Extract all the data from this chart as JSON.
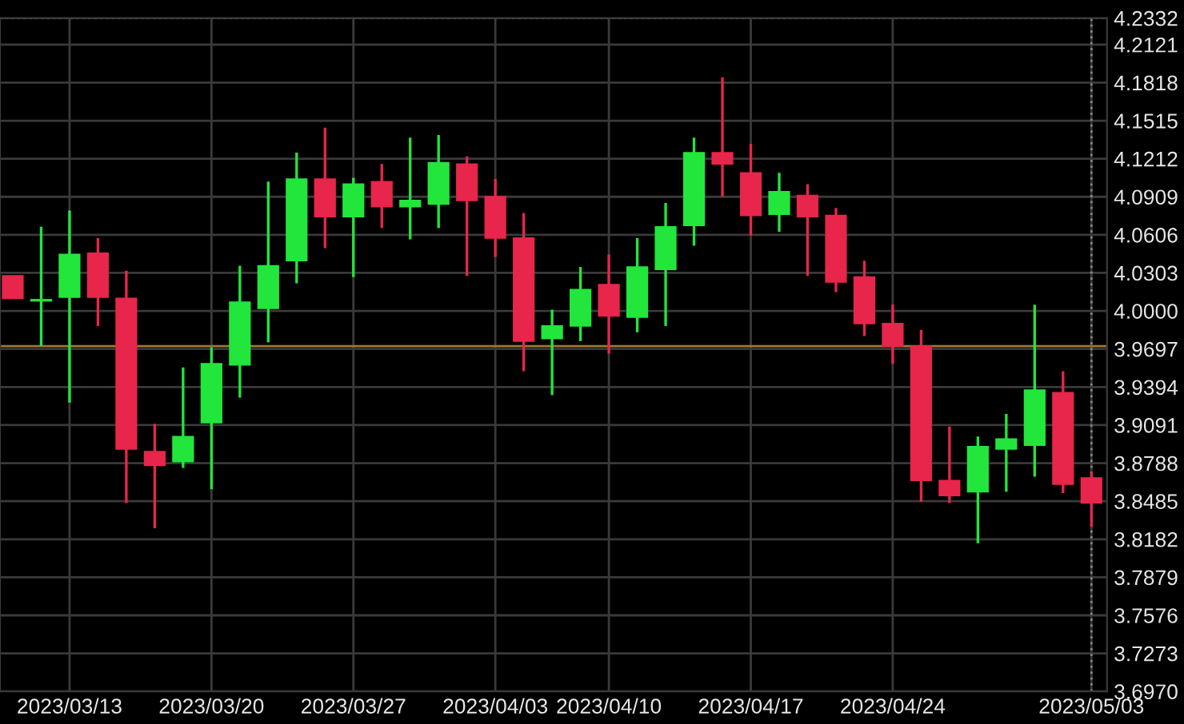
{
  "chart_data": {
    "type": "candlestick",
    "categories": [
      null,
      null,
      "2023/03/13",
      null,
      null,
      null,
      null,
      "2023/03/20",
      null,
      null,
      null,
      null,
      "2023/03/27",
      null,
      null,
      null,
      null,
      "2023/04/03",
      null,
      null,
      null,
      "2023/04/10",
      null,
      null,
      null,
      null,
      "2023/04/17",
      null,
      null,
      null,
      null,
      "2023/04/24",
      null,
      null,
      null,
      null,
      null,
      null,
      "2023/05/03"
    ],
    "ohlc": [
      [
        4.028,
        4.028,
        4.01,
        4.01
      ],
      [
        4.008,
        4.067,
        3.972,
        4.009
      ],
      [
        4.011,
        4.08,
        3.927,
        4.045
      ],
      [
        4.046,
        4.058,
        3.988,
        4.011
      ],
      [
        4.01,
        4.032,
        3.847,
        3.89
      ],
      [
        3.888,
        3.91,
        3.827,
        3.877
      ],
      [
        3.88,
        3.955,
        3.875,
        3.9
      ],
      [
        3.911,
        3.971,
        3.858,
        3.958
      ],
      [
        3.957,
        4.036,
        3.931,
        4.007
      ],
      [
        4.002,
        4.103,
        3.975,
        4.036
      ],
      [
        4.04,
        4.126,
        4.022,
        4.105
      ],
      [
        4.105,
        4.146,
        4.05,
        4.075
      ],
      [
        4.075,
        4.106,
        4.027,
        4.101
      ],
      [
        4.103,
        4.117,
        4.066,
        4.083
      ],
      [
        4.083,
        4.138,
        4.057,
        4.088
      ],
      [
        4.085,
        4.14,
        4.066,
        4.118
      ],
      [
        4.117,
        4.123,
        4.028,
        4.088
      ],
      [
        4.091,
        4.105,
        4.043,
        4.058
      ],
      [
        4.058,
        4.078,
        3.952,
        3.976
      ],
      [
        3.978,
        4.001,
        3.933,
        3.988
      ],
      [
        3.988,
        4.035,
        3.976,
        4.017
      ],
      [
        4.021,
        4.045,
        3.966,
        3.996
      ],
      [
        3.995,
        4.058,
        3.983,
        4.035
      ],
      [
        4.033,
        4.086,
        3.988,
        4.067
      ],
      [
        4.068,
        4.138,
        4.052,
        4.126
      ],
      [
        4.126,
        4.186,
        4.091,
        4.117
      ],
      [
        4.11,
        4.133,
        4.06,
        4.076
      ],
      [
        4.077,
        4.11,
        4.063,
        4.095
      ],
      [
        4.092,
        4.101,
        4.028,
        4.075
      ],
      [
        4.076,
        4.082,
        4.015,
        4.023
      ],
      [
        4.027,
        4.04,
        3.98,
        3.99
      ],
      [
        3.99,
        4.005,
        3.958,
        3.972
      ],
      [
        3.972,
        3.985,
        3.848,
        3.865
      ],
      [
        3.865,
        3.908,
        3.847,
        3.853
      ],
      [
        3.856,
        3.9,
        3.815,
        3.892
      ],
      [
        3.89,
        3.918,
        3.856,
        3.898
      ],
      [
        3.893,
        4.005,
        3.868,
        3.937
      ],
      [
        3.935,
        3.952,
        3.855,
        3.862
      ],
      [
        3.867,
        3.872,
        3.828,
        3.847
      ]
    ],
    "colors": [
      "#e8254b",
      "#22e63c",
      "#22e63c",
      "#e8254b",
      "#e8254b",
      "#e8254b",
      "#22e63c",
      "#22e63c",
      "#22e63c",
      "#22e63c",
      "#22e63c",
      "#e8254b",
      "#22e63c",
      "#e8254b",
      "#22e63c",
      "#22e63c",
      "#e8254b",
      "#e8254b",
      "#e8254b",
      "#22e63c",
      "#22e63c",
      "#e8254b",
      "#22e63c",
      "#22e63c",
      "#22e63c",
      "#e8254b",
      "#e8254b",
      "#22e63c",
      "#e8254b",
      "#e8254b",
      "#e8254b",
      "#e8254b",
      "#e8254b",
      "#e8254b",
      "#22e63c",
      "#22e63c",
      "#22e63c",
      "#e8254b",
      "#e8254b"
    ],
    "ylim": [
      3.697,
      4.2332
    ],
    "yticks": [
      {
        "value": 3.697,
        "label": "3.6970"
      },
      3.7273,
      3.7576,
      3.7879,
      3.8182,
      3.8485,
      3.8788,
      3.9091,
      3.9394,
      3.9697,
      {
        "value": 4.0,
        "label": "4.0000"
      },
      4.0303,
      4.0606,
      4.0909,
      4.1212,
      4.1515,
      4.1818,
      4.2121,
      4.2332
    ],
    "ref_lines": [
      {
        "axis": "y",
        "value": 3.972,
        "color": "#a07830",
        "line_style": "solid"
      },
      {
        "axis": "y",
        "value": 4.2332,
        "color": "#888888",
        "line_style": "dotted"
      },
      {
        "axis": "x",
        "value": "2023/05/03",
        "color": "#888888",
        "line_style": "dotted"
      }
    ],
    "grid": true,
    "legend": false
  }
}
